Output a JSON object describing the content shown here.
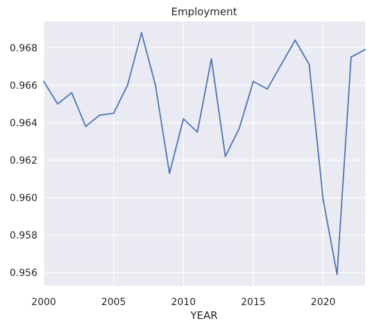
{
  "chart_data": {
    "type": "line",
    "title": "Employment",
    "xlabel": "YEAR",
    "ylabel": "",
    "xlim": [
      2000,
      2023
    ],
    "ylim": [
      0.9553,
      0.9694
    ],
    "xticks": [
      2000,
      2005,
      2010,
      2015,
      2020
    ],
    "xtick_labels": [
      "2000",
      "2005",
      "2010",
      "2015",
      "2020"
    ],
    "yticks": [
      0.956,
      0.958,
      0.96,
      0.962,
      0.964,
      0.966,
      0.968
    ],
    "ytick_labels": [
      "0.956",
      "0.958",
      "0.960",
      "0.962",
      "0.964",
      "0.966",
      "0.968"
    ],
    "grid": true,
    "background_color": "#eaeaf2",
    "grid_color": "#ffffff",
    "series": [
      {
        "color": "#4c72b0",
        "x": [
          2000,
          2001,
          2002,
          2003,
          2004,
          2005,
          2006,
          2007,
          2008,
          2009,
          2010,
          2011,
          2012,
          2013,
          2014,
          2015,
          2016,
          2017,
          2018,
          2019,
          2020,
          2021,
          2022,
          2023
        ],
        "y": [
          0.9662,
          0.965,
          0.9656,
          0.9638,
          0.9644,
          0.9645,
          0.966,
          0.9688,
          0.966,
          0.9613,
          0.9642,
          0.9635,
          0.9674,
          0.9622,
          0.9637,
          0.9662,
          0.9658,
          0.9671,
          0.9684,
          0.9671,
          0.9599,
          0.9559,
          0.9675,
          0.9679
        ]
      }
    ]
  }
}
